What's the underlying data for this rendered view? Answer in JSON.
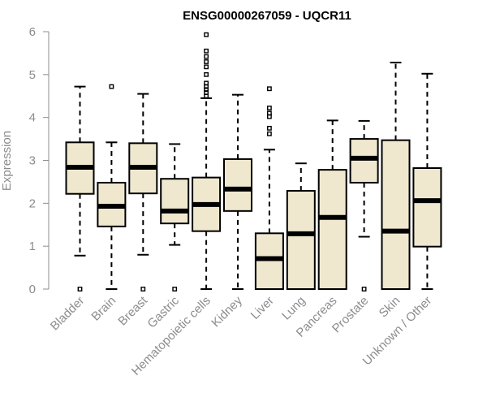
{
  "chart_data": {
    "type": "box",
    "title": "ENSG00000267059 - UQCR11",
    "xlabel": "",
    "ylabel": "Expression",
    "ylim": [
      0,
      6
    ],
    "yticks": [
      "0",
      "1",
      "2",
      "3",
      "4",
      "5",
      "6"
    ],
    "grid": false,
    "legend": "none",
    "box_fill_color": "#efe8cf",
    "categories": [
      "Bladder",
      "Brain",
      "Breast",
      "Gastric",
      "Hematopoietic cells",
      "Kidney",
      "Liver",
      "Lung",
      "Pancreas",
      "Prostate",
      "Skin",
      "Unknown / Other"
    ],
    "boxes": [
      {
        "min": 0.78,
        "q1": 2.22,
        "median": 2.84,
        "q3": 3.42,
        "max": 4.72,
        "outliers": [
          0.0
        ]
      },
      {
        "min": 0.0,
        "q1": 1.46,
        "median": 1.93,
        "q3": 2.48,
        "max": 3.42,
        "outliers": [
          4.72
        ]
      },
      {
        "min": 0.8,
        "q1": 2.23,
        "median": 2.84,
        "q3": 3.4,
        "max": 4.55,
        "outliers": [
          0.0
        ]
      },
      {
        "min": 1.03,
        "q1": 1.53,
        "median": 1.82,
        "q3": 2.57,
        "max": 3.38,
        "outliers": [
          0.0
        ]
      },
      {
        "min": 0.0,
        "q1": 1.35,
        "median": 1.97,
        "q3": 2.6,
        "max": 4.45,
        "outliers": [
          4.5,
          4.58,
          4.65,
          4.72,
          4.8,
          5.0,
          5.18,
          5.3,
          5.42,
          5.55,
          5.93
        ]
      },
      {
        "min": 0.0,
        "q1": 1.82,
        "median": 2.33,
        "q3": 3.03,
        "max": 4.53,
        "outliers": []
      },
      {
        "min": 0.0,
        "q1": 0.0,
        "median": 0.71,
        "q3": 1.3,
        "max": 3.25,
        "outliers": [
          3.62,
          3.75,
          4.02,
          4.1,
          4.22,
          4.67
        ]
      },
      {
        "min": 0.0,
        "q1": 0.0,
        "median": 1.29,
        "q3": 2.29,
        "max": 2.93,
        "outliers": []
      },
      {
        "min": 0.0,
        "q1": 0.0,
        "median": 1.67,
        "q3": 2.78,
        "max": 3.93,
        "outliers": []
      },
      {
        "min": 1.22,
        "q1": 2.48,
        "median": 3.05,
        "q3": 3.5,
        "max": 3.92,
        "outliers": [
          0.0
        ]
      },
      {
        "min": 0.0,
        "q1": 0.0,
        "median": 1.35,
        "q3": 3.47,
        "max": 5.28,
        "outliers": []
      },
      {
        "min": 0.0,
        "q1": 0.99,
        "median": 2.06,
        "q3": 2.82,
        "max": 5.02,
        "outliers": []
      }
    ]
  }
}
